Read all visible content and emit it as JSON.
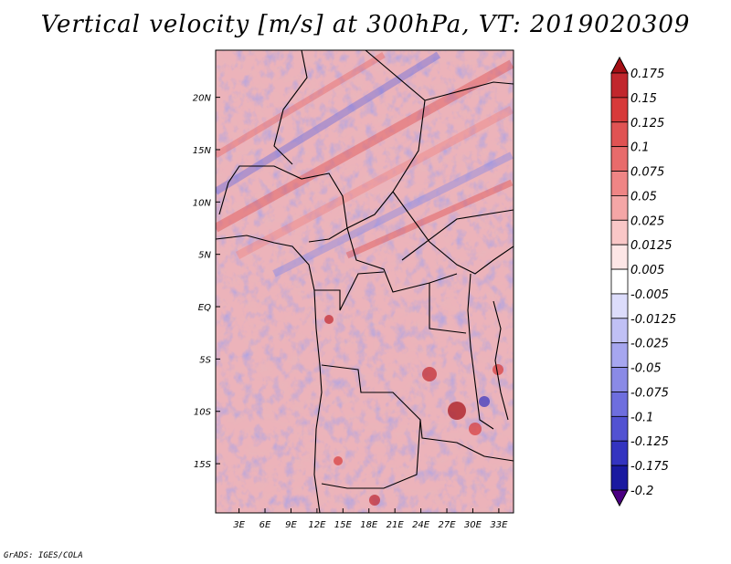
{
  "chart_data": {
    "type": "heatmap",
    "title": "Vertical velocity [m/s] at 300hPa, VT: 2019020309",
    "xlabel": "",
    "ylabel": "",
    "x_tick_labels": [
      "3E",
      "6E",
      "9E",
      "12E",
      "15E",
      "18E",
      "21E",
      "24E",
      "27E",
      "30E",
      "33E"
    ],
    "x_tick_values": [
      3,
      6,
      9,
      12,
      15,
      18,
      21,
      24,
      27,
      30,
      33
    ],
    "y_tick_labels": [
      "20N",
      "15N",
      "10N",
      "5N",
      "EQ",
      "5S",
      "10S",
      "15S"
    ],
    "y_tick_values": [
      20,
      15,
      10,
      5,
      0,
      -5,
      -10,
      -15
    ],
    "xlim": [
      0.3,
      34.7
    ],
    "ylim": [
      -19.7,
      24.5
    ],
    "colorbar": {
      "labels": [
        "0.175",
        "0.15",
        "0.125",
        "0.1",
        "0.075",
        "0.05",
        "0.025",
        "0.0125",
        "0.005",
        "-0.005",
        "-0.0125",
        "-0.025",
        "-0.05",
        "-0.075",
        "-0.1",
        "-0.125",
        "-0.175",
        "-0.2"
      ],
      "colors": [
        "#a50f15",
        "#c1272d",
        "#d73a3a",
        "#e05353",
        "#e86b6b",
        "#ef8585",
        "#f4a6a6",
        "#f9c7c7",
        "#fde6e6",
        "#ffffff",
        "#dcdcfb",
        "#c0c0f5",
        "#a6a6ef",
        "#8a8ae6",
        "#6e6ede",
        "#5252d2",
        "#3434c0",
        "#1a1aa0",
        "#4b0082"
      ]
    },
    "description_regions": [
      "bands of rising/sinking motion oriented SW-NE over northern Africa",
      "mottled small-scale mix over equatorial and southern Africa"
    ]
  },
  "credit": "GrADS: IGES/COLA"
}
